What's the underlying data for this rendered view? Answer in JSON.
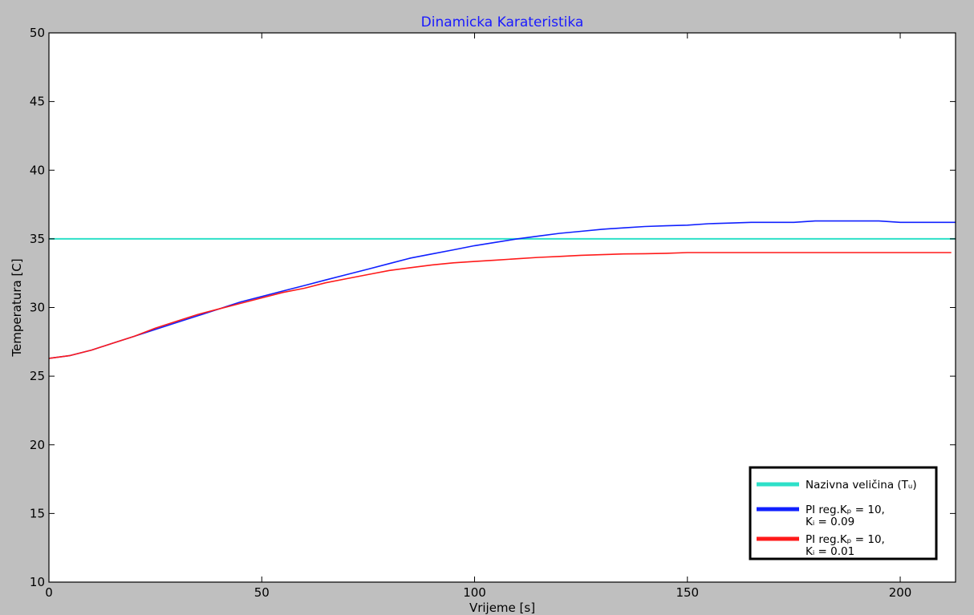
{
  "chart_data": {
    "type": "line",
    "title": "Dinamicka Karateristika",
    "title_color": "#1a1aff",
    "xlabel": "Vrijeme [s]",
    "ylabel": "Temperatura [C]",
    "xlim": [
      0,
      213
    ],
    "ylim": [
      10,
      50
    ],
    "x_ticks": [
      0,
      50,
      100,
      150,
      200
    ],
    "y_ticks": [
      10,
      15,
      20,
      25,
      30,
      35,
      40,
      45,
      50
    ],
    "grid": false,
    "legend_position": "lower-right",
    "series": [
      {
        "name": "Nazivna veličina (Tᵤ)",
        "color": "#2de0c8",
        "x": [
          0,
          213
        ],
        "y": [
          35,
          35
        ]
      },
      {
        "name": "PI reg.Kₚ = 10, Kᵢ = 0.09",
        "color": "#1020ff",
        "x": [
          0,
          5,
          10,
          15,
          20,
          25,
          30,
          35,
          40,
          45,
          50,
          55,
          60,
          65,
          70,
          75,
          80,
          85,
          90,
          95,
          100,
          105,
          110,
          115,
          120,
          125,
          130,
          135,
          140,
          145,
          150,
          155,
          160,
          165,
          170,
          175,
          180,
          185,
          190,
          195,
          200,
          205,
          213
        ],
        "y": [
          26.3,
          26.5,
          26.9,
          27.4,
          27.9,
          28.4,
          28.9,
          29.4,
          29.9,
          30.4,
          30.8,
          31.2,
          31.6,
          32.0,
          32.4,
          32.8,
          33.2,
          33.6,
          33.9,
          34.2,
          34.5,
          34.75,
          35.0,
          35.2,
          35.4,
          35.55,
          35.7,
          35.8,
          35.9,
          35.95,
          36.0,
          36.1,
          36.15,
          36.2,
          36.2,
          36.2,
          36.3,
          36.3,
          36.3,
          36.3,
          36.2,
          36.2,
          36.2
        ]
      },
      {
        "name": "PI reg.Kₚ = 10, Kᵢ = 0.01",
        "color": "#ff1a1a",
        "x": [
          0,
          5,
          10,
          15,
          20,
          25,
          30,
          35,
          40,
          45,
          50,
          55,
          60,
          65,
          70,
          75,
          80,
          85,
          90,
          95,
          100,
          105,
          110,
          115,
          120,
          125,
          130,
          135,
          140,
          145,
          150,
          160,
          170,
          180,
          190,
          200,
          212
        ],
        "y": [
          26.3,
          26.5,
          26.9,
          27.4,
          27.9,
          28.5,
          29.0,
          29.5,
          29.9,
          30.3,
          30.7,
          31.1,
          31.4,
          31.8,
          32.1,
          32.4,
          32.7,
          32.9,
          33.1,
          33.25,
          33.35,
          33.45,
          33.55,
          33.65,
          33.72,
          33.8,
          33.85,
          33.9,
          33.92,
          33.95,
          34.0,
          34.0,
          34.0,
          34.0,
          34.0,
          34.0,
          34.0
        ]
      }
    ],
    "legend": {
      "entries": [
        {
          "line1": "Nazivna veličina (Tᵤ)",
          "line2": ""
        },
        {
          "line1": "PI reg.Kₚ = 10,",
          "line2": "Kᵢ = 0.09"
        },
        {
          "line1": "PI reg.Kₚ = 10,",
          "line2": "Kᵢ = 0.01"
        }
      ]
    }
  }
}
